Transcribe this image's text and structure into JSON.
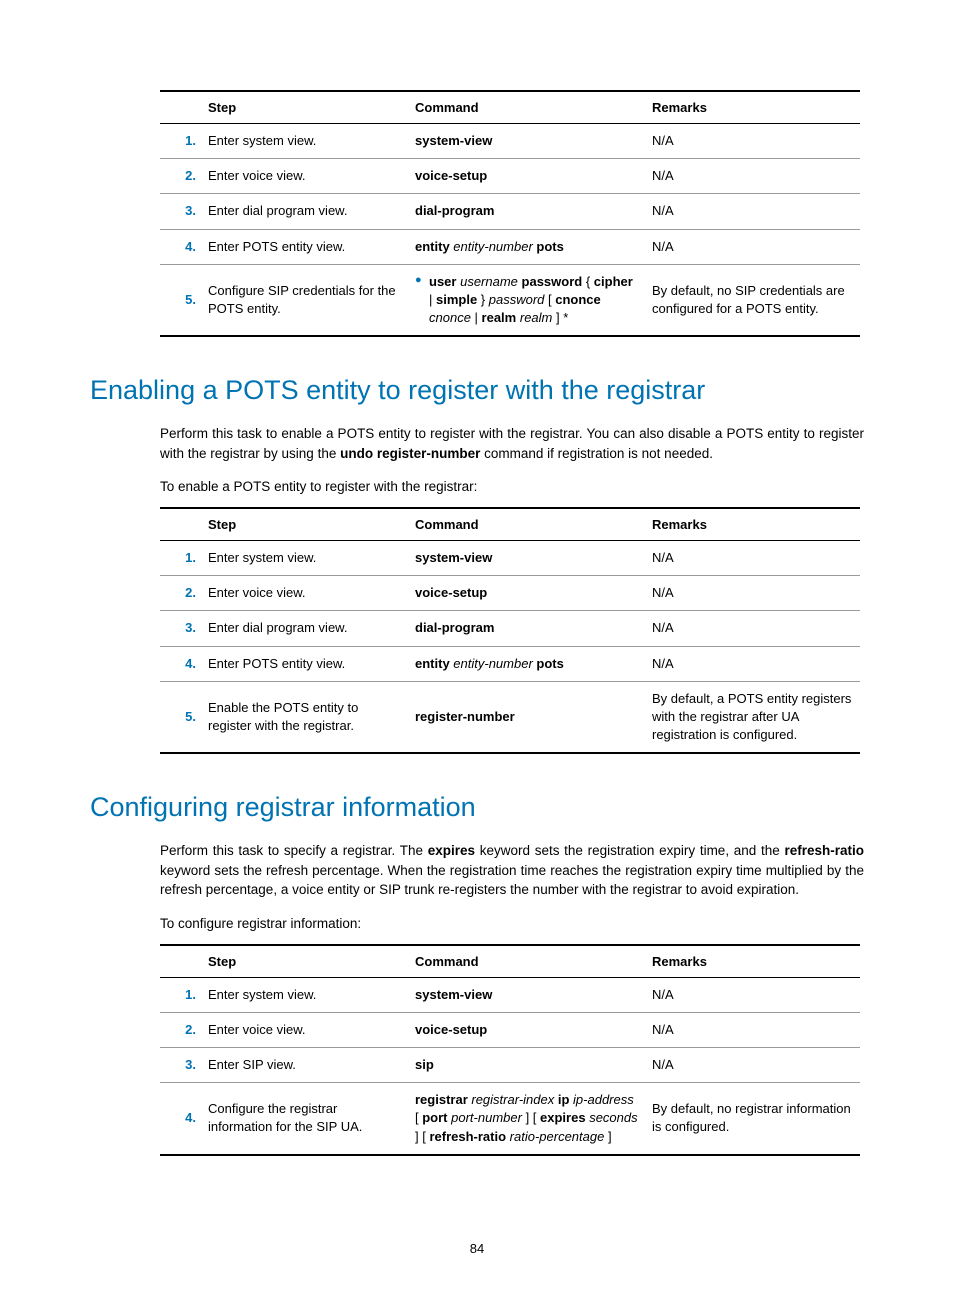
{
  "page_number": "84",
  "colors": {
    "accent": "#0073b3",
    "text": "#000000",
    "rule": "#999999"
  },
  "table1": {
    "headers": [
      "Step",
      "Command",
      "Remarks"
    ],
    "rows": [
      {
        "n": "1.",
        "step": "Enter system view.",
        "cmd_html": "<span class='bold'>system-view</span>",
        "rem": "N/A"
      },
      {
        "n": "2.",
        "step": "Enter voice view.",
        "cmd_html": "<span class='bold'>voice-setup</span>",
        "rem": "N/A"
      },
      {
        "n": "3.",
        "step": "Enter dial program view.",
        "cmd_html": "<span class='bold'>dial-program</span>",
        "rem": "N/A"
      },
      {
        "n": "4.",
        "step": "Enter POTS entity view.",
        "cmd_html": "<span class='bold'>entity</span> <span class='ital'>entity-number</span> <span class='bold'>pots</span>",
        "rem": "N/A"
      },
      {
        "n": "5.",
        "step": "Configure SIP credentials for the POTS entity.",
        "cmd_html": "<span class='bullet'>●</span><span class='bullet-text'><span class='bold'>user</span> <span class='ital'>username</span> <span class='bold'>password</span> { <span class='bold'>cipher</span> | <span class='bold'>simple</span> } <span class='ital'>password</span> [ <span class='bold'>cnonce</span> <span class='ital'>cnonce</span> | <span class='bold'>realm</span> <span class='ital'>realm</span> ] *</span>",
        "rem": "By default, no SIP credentials are configured for a POTS entity."
      }
    ]
  },
  "section2": {
    "title": "Enabling a POTS entity to register with the registrar",
    "para1_html": "Perform this task to enable a POTS entity to register with the registrar. You can also disable a POTS entity to register with the registrar by using the <span class='bold'>undo register-number</span> command if registration is not needed.",
    "para2": "To enable a POTS entity to register with the registrar:"
  },
  "table2": {
    "headers": [
      "Step",
      "Command",
      "Remarks"
    ],
    "rows": [
      {
        "n": "1.",
        "step": "Enter system view.",
        "cmd_html": "<span class='bold'>system-view</span>",
        "rem": "N/A"
      },
      {
        "n": "2.",
        "step": "Enter voice view.",
        "cmd_html": "<span class='bold'>voice-setup</span>",
        "rem": "N/A"
      },
      {
        "n": "3.",
        "step": "Enter dial program view.",
        "cmd_html": "<span class='bold'>dial-program</span>",
        "rem": "N/A"
      },
      {
        "n": "4.",
        "step": "Enter POTS entity view.",
        "cmd_html": "<span class='bold'>entity</span> <span class='ital'>entity-number</span> <span class='bold'>pots</span>",
        "rem": "N/A"
      },
      {
        "n": "5.",
        "step": "Enable the POTS entity to register with the registrar.",
        "cmd_html": "<span class='bold'>register-number</span>",
        "rem": "By default, a POTS entity registers with the registrar after UA registration is configured."
      }
    ]
  },
  "section3": {
    "title": "Configuring registrar information",
    "para1_html": "Perform this task to specify a registrar. The <span class='bold'>expires</span> keyword sets the registration expiry time, and the <span class='bold'>refresh-ratio</span> keyword sets the refresh percentage. When the registration time reaches the registration expiry time multiplied by the refresh percentage, a voice entity or SIP trunk re-registers the number with the registrar to avoid expiration.",
    "para2": "To configure registrar information:"
  },
  "table3": {
    "headers": [
      "Step",
      "Command",
      "Remarks"
    ],
    "rows": [
      {
        "n": "1.",
        "step": "Enter system view.",
        "cmd_html": "<span class='bold'>system-view</span>",
        "rem": "N/A"
      },
      {
        "n": "2.",
        "step": "Enter voice view.",
        "cmd_html": "<span class='bold'>voice-setup</span>",
        "rem": "N/A"
      },
      {
        "n": "3.",
        "step": "Enter SIP view.",
        "cmd_html": "<span class='bold'>sip</span>",
        "rem": "N/A"
      },
      {
        "n": "4.",
        "step": "Configure the registrar information for the SIP UA.",
        "cmd_html": "<span class='bold'>registrar</span> <span class='ital'>registrar-index</span> <span class='bold'>ip</span> <span class='ital'>ip-address</span> [ <span class='bold'>port</span> <span class='ital'>port-number</span> ] [ <span class='bold'>expires</span> <span class='ital'>seconds</span> ] [ <span class='bold'>refresh-ratio</span> <span class='ital'>ratio-percentage</span> ]",
        "rem": "By default, no registrar information is configured."
      }
    ]
  }
}
